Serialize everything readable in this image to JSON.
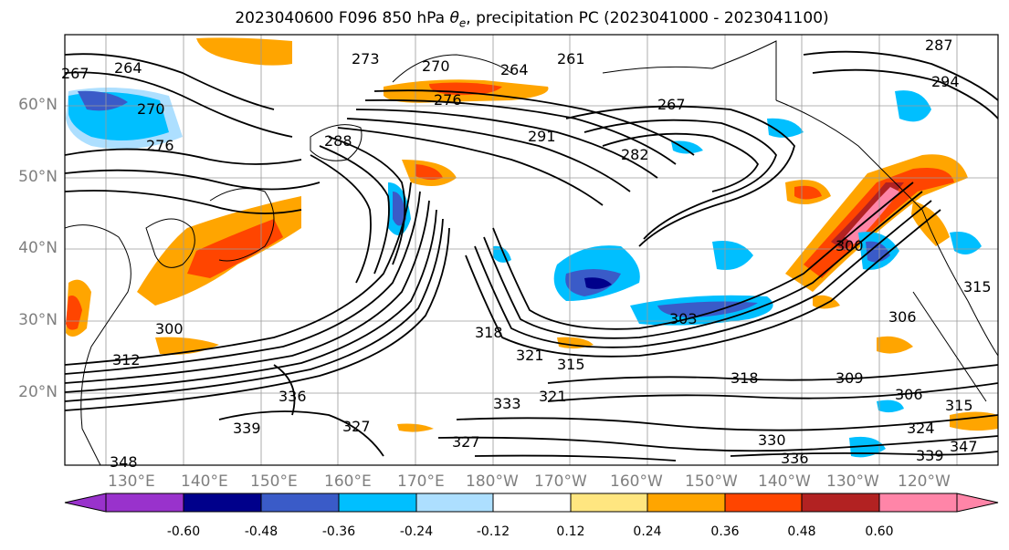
{
  "title_parts": {
    "prefix": "2023040600 F096 850 hPa ",
    "theta": "θ",
    "sub": "e",
    "suffix": ", precipitation PC (2023041000 - 2023041100)"
  },
  "lat_labels": [
    "60°N",
    "50°N",
    "40°N",
    "30°N",
    "20°N"
  ],
  "lon_labels": [
    "130°E",
    "140°E",
    "150°E",
    "160°E",
    "170°E",
    "180°W",
    "170°W",
    "160°W",
    "150°W",
    "140°W",
    "130°W",
    "120°W"
  ],
  "colorbar": {
    "colors": [
      "#9932CC",
      "#00008B",
      "#3A5BC8",
      "#00BFFF",
      "#ADDFFF",
      "#FFFFFF",
      "#FFE680",
      "#FFA500",
      "#FF4500",
      "#B22222",
      "#FF85A8"
    ],
    "tick_labels": [
      "-0.60",
      "-0.48",
      "-0.36",
      "-0.24",
      "-0.12",
      "0.12",
      "0.24",
      "0.36",
      "0.48",
      "0.60"
    ]
  },
  "contour_labels": [
    "267",
    "264",
    "270",
    "273",
    "270",
    "264",
    "261",
    "287",
    "294",
    "276",
    "267",
    "291",
    "282",
    "276",
    "288",
    "300",
    "312",
    "315",
    "318",
    "321",
    "327",
    "333",
    "336",
    "339",
    "348",
    "330",
    "336",
    "339",
    "347",
    "303",
    "306",
    "309",
    "306",
    "315",
    "324",
    "300",
    "315",
    "318",
    "321",
    "327"
  ],
  "map_features": {
    "projection": "cylindrical",
    "lon_range": [
      "120°E",
      "125°W"
    ],
    "lat_range": [
      "10°N",
      "70°N"
    ],
    "grid": true
  }
}
